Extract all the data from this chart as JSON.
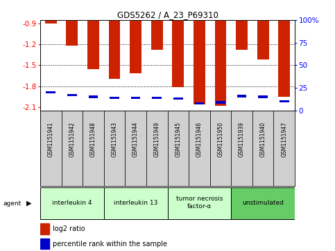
{
  "title": "GDS5262 / A_23_P69310",
  "samples": [
    "GSM1151941",
    "GSM1151942",
    "GSM1151948",
    "GSM1151943",
    "GSM1151944",
    "GSM1151949",
    "GSM1151945",
    "GSM1151946",
    "GSM1151950",
    "GSM1151939",
    "GSM1151940",
    "GSM1151947"
  ],
  "log2_ratio": [
    -0.9,
    -1.22,
    -1.56,
    -1.7,
    -1.62,
    -1.28,
    -1.81,
    -2.06,
    -2.08,
    -1.28,
    -1.42,
    -1.95
  ],
  "percentile": [
    20,
    17,
    15,
    14,
    14,
    14,
    13,
    8,
    9,
    16,
    15,
    10
  ],
  "agents": [
    {
      "label": "interleukin 4",
      "start": 0,
      "end": 2,
      "color": "#ccffcc"
    },
    {
      "label": "interleukin 13",
      "start": 3,
      "end": 5,
      "color": "#ccffcc"
    },
    {
      "label": "tumor necrosis\nfactor-α",
      "start": 6,
      "end": 8,
      "color": "#ccffcc"
    },
    {
      "label": "unstimulated",
      "start": 9,
      "end": 11,
      "color": "#66cc66"
    }
  ],
  "ylim_left": [
    -2.15,
    -0.85
  ],
  "yticks_left": [
    -2.1,
    -1.8,
    -1.5,
    -1.2,
    -0.9
  ],
  "ylim_right": [
    0,
    100
  ],
  "yticks_right": [
    0,
    25,
    50,
    75,
    100
  ],
  "bar_color": "#cc2200",
  "percentile_color": "#0000cc",
  "grid_color": "#000000",
  "background_color": "#ffffff",
  "agent_label": "agent",
  "legend_log2": "log2 ratio",
  "legend_pct": "percentile rank within the sample"
}
